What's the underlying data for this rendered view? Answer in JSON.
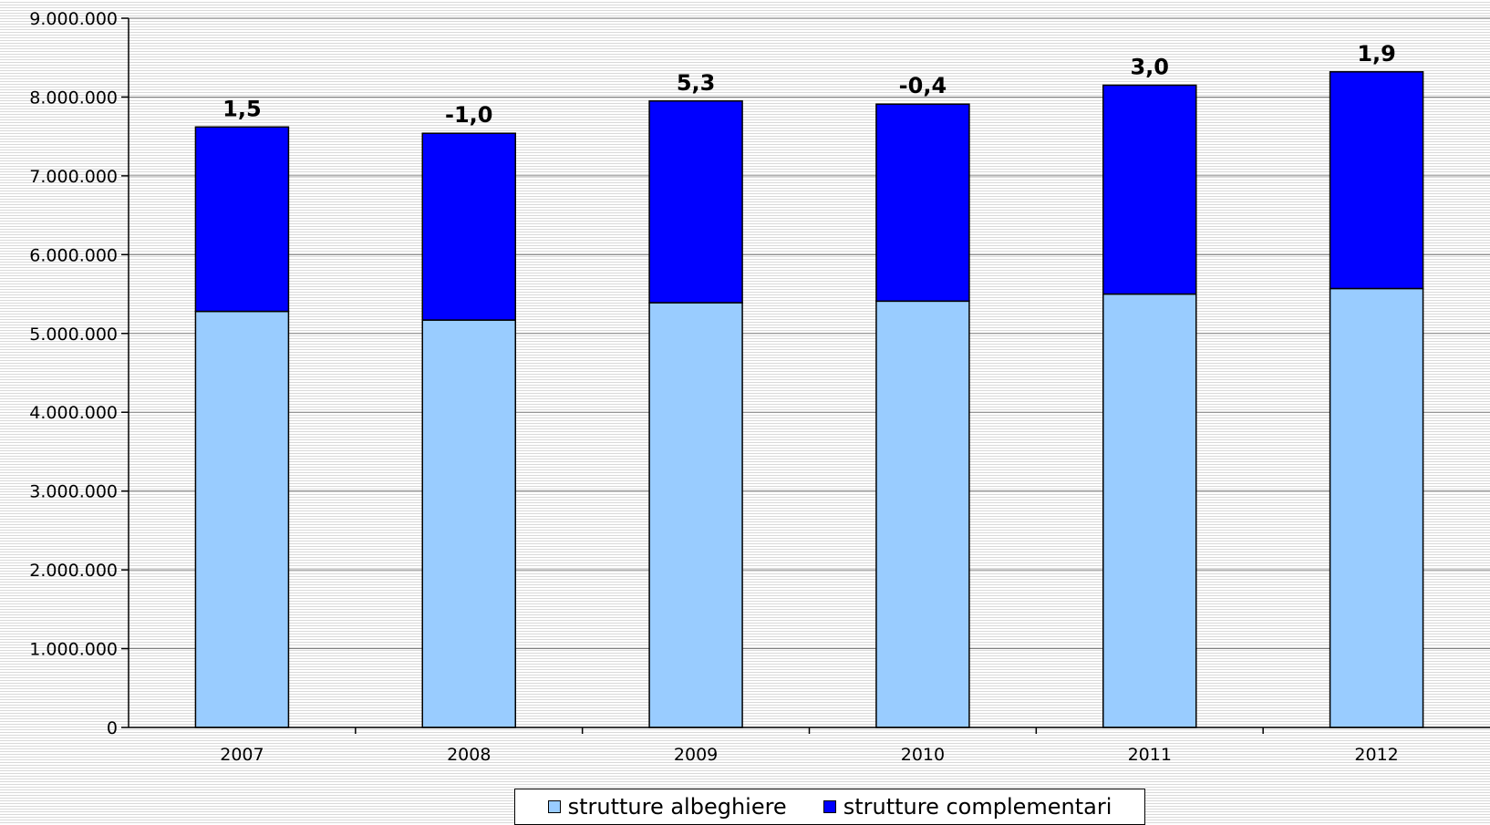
{
  "chart_data": {
    "type": "bar",
    "stacked": true,
    "categories": [
      "2007",
      "2008",
      "2009",
      "2010",
      "2011",
      "2012"
    ],
    "series": [
      {
        "name": "strutture albeghiere",
        "color": "#99ccff",
        "values": [
          5280000,
          5170000,
          5390000,
          5410000,
          5500000,
          5570000
        ]
      },
      {
        "name": "strutture complementari",
        "color": "#0000ff",
        "values": [
          2340000,
          2370000,
          2560000,
          2500000,
          2650000,
          2750000
        ]
      }
    ],
    "data_labels": [
      "1,5",
      "-1,0",
      "5,3",
      "-0,4",
      "3,0",
      "1,9"
    ],
    "ylim": [
      0,
      9000000
    ],
    "yticks": [
      {
        "value": 0,
        "label": "0"
      },
      {
        "value": 1000000,
        "label": "1.000.000"
      },
      {
        "value": 2000000,
        "label": "2.000.000"
      },
      {
        "value": 3000000,
        "label": "3.000.000"
      },
      {
        "value": 4000000,
        "label": "4.000.000"
      },
      {
        "value": 5000000,
        "label": "5.000.000"
      },
      {
        "value": 6000000,
        "label": "6.000.000"
      },
      {
        "value": 7000000,
        "label": "7.000.000"
      },
      {
        "value": 8000000,
        "label": "8.000.000"
      },
      {
        "value": 9000000,
        "label": "9.000.000"
      }
    ],
    "title": "",
    "xlabel": "",
    "ylabel": "",
    "grid": true,
    "legend_position": "bottom"
  }
}
